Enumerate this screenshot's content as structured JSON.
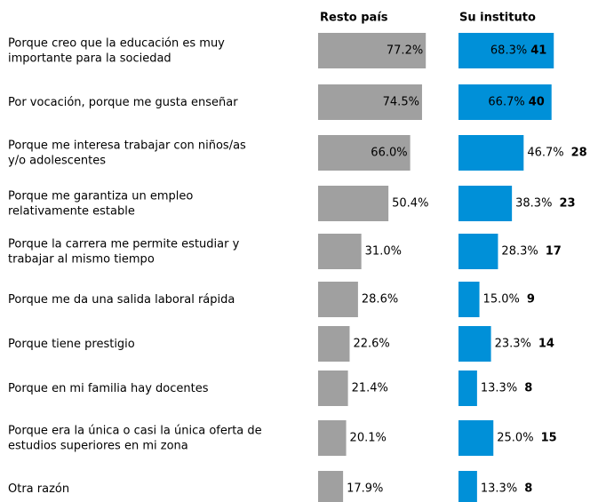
{
  "chart_data": {
    "type": "bar",
    "categories": [
      "Porque creo que la educación es muy\nimportante para la sociedad",
      "Por vocación, porque me gusta enseñar",
      "Porque me interesa trabajar con niños/as\ny/o adolescentes",
      "Porque me garantiza un empleo\nrelativamente estable",
      "Porque la carrera me permite estudiar y\ntrabajar al mismo tiempo",
      "Porque me da una salida laboral rápida",
      "Porque tiene prestigio",
      "Porque en mi familia hay docentes",
      "Porque era la única o casi la única oferta de\nestudios superiores en mi zona",
      "Otra razón"
    ],
    "xlim": [
      0,
      100
    ],
    "series": [
      {
        "name": "Resto país",
        "color": "#a0a0a0",
        "values": [
          77.2,
          74.5,
          66.0,
          50.4,
          31.0,
          28.6,
          22.6,
          21.4,
          20.1,
          17.9
        ],
        "value_labels": [
          "77.2%",
          "74.5%",
          "66.0%",
          "50.4%",
          "31.0%",
          "28.6%",
          "22.6%",
          "21.4%",
          "20.1%",
          "17.9%"
        ]
      },
      {
        "name": "Su instituto",
        "color": "#0090d8",
        "values": [
          68.3,
          66.7,
          46.7,
          38.3,
          28.3,
          15.0,
          23.3,
          13.3,
          25.0,
          13.3
        ],
        "value_labels": [
          "68.3%",
          "66.7%",
          "46.7%",
          "38.3%",
          "28.3%",
          "15.0%",
          "23.3%",
          "13.3%",
          "25.0%",
          "13.3%"
        ],
        "counts": [
          41,
          40,
          28,
          23,
          17,
          9,
          14,
          8,
          15,
          8
        ]
      }
    ]
  }
}
